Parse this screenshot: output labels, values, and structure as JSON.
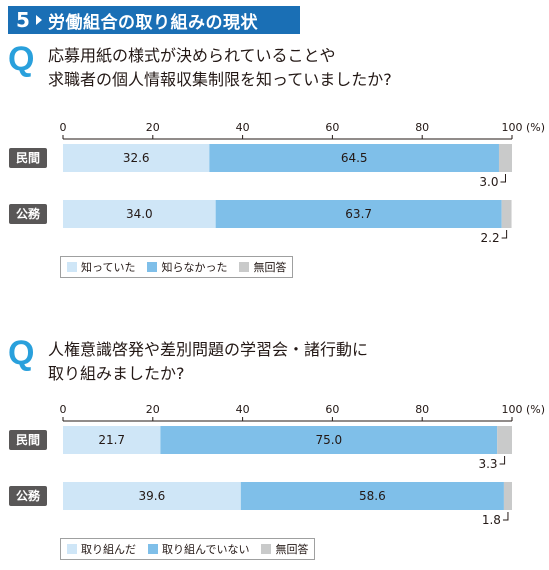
{
  "header": {
    "number": "5",
    "title": "労働組合の取り組みの現状"
  },
  "questions": [
    {
      "mark": "Q",
      "lines": [
        "応募用紙の様式が決められていることや",
        "求職者の個人情報収集制限を知っていましたか?"
      ]
    },
    {
      "mark": "Q",
      "lines": [
        "人権意識啓発や差別問題の学習会・諸行動に",
        "取り組みましたか?"
      ]
    }
  ],
  "colors": {
    "series1": "#cfe6f7",
    "series2": "#7fbfe9",
    "series3": "#c9caca",
    "header": "#1a6fb5"
  },
  "chart_data": [
    {
      "type": "bar",
      "orientation": "horizontal-stacked",
      "unit_label": "(%)",
      "xlim": [
        0,
        100
      ],
      "ticks": [
        "0",
        "20",
        "40",
        "60",
        "80",
        "100"
      ],
      "categories": [
        "民間",
        "公務"
      ],
      "series": [
        {
          "name": "知っていた",
          "values": [
            32.6,
            34.0
          ],
          "labels": [
            "32.6",
            "34.0"
          ]
        },
        {
          "name": "知らなかった",
          "values": [
            64.5,
            63.7
          ],
          "labels": [
            "64.5",
            "63.7"
          ]
        },
        {
          "name": "無回答",
          "values": [
            3.0,
            2.2
          ],
          "labels": [
            "3.0",
            "2.2"
          ]
        }
      ]
    },
    {
      "type": "bar",
      "orientation": "horizontal-stacked",
      "unit_label": "(%)",
      "xlim": [
        0,
        100
      ],
      "ticks": [
        "0",
        "20",
        "40",
        "60",
        "80",
        "100"
      ],
      "categories": [
        "民間",
        "公務"
      ],
      "series": [
        {
          "name": "取り組んだ",
          "values": [
            21.7,
            39.6
          ],
          "labels": [
            "21.7",
            "39.6"
          ]
        },
        {
          "name": "取り組んでいない",
          "values": [
            75.0,
            58.6
          ],
          "labels": [
            "75.0",
            "58.6"
          ]
        },
        {
          "name": "無回答",
          "values": [
            3.3,
            1.8
          ],
          "labels": [
            "3.3",
            "1.8"
          ]
        }
      ]
    }
  ]
}
